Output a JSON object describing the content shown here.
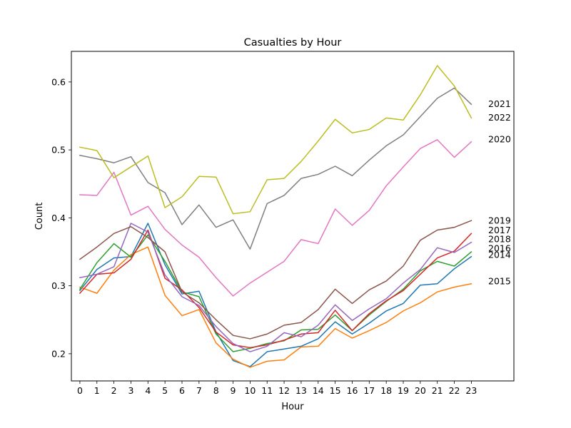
{
  "chart_data": {
    "type": "line",
    "title": "Casualties by Hour",
    "xlabel": "Hour",
    "ylabel": "Count",
    "x": [
      0,
      1,
      2,
      3,
      4,
      5,
      6,
      7,
      8,
      9,
      10,
      11,
      12,
      13,
      14,
      15,
      16,
      17,
      18,
      19,
      20,
      21,
      22,
      23
    ],
    "xticks": [
      "0",
      "1",
      "2",
      "3",
      "4",
      "5",
      "6",
      "7",
      "8",
      "9",
      "10",
      "11",
      "12",
      "13",
      "14",
      "15",
      "16",
      "17",
      "18",
      "19",
      "20",
      "21",
      "22",
      "23"
    ],
    "yticks": [
      "0.2",
      "0.3",
      "0.4",
      "0.5",
      "0.6"
    ],
    "xlim": [
      -0.5,
      25.5
    ],
    "ylim": [
      0.16,
      0.645
    ],
    "grid": false,
    "legend": "end-of-line labels",
    "series": [
      {
        "name": "2014",
        "color": "#1f77b4",
        "values": [
          0.293,
          0.324,
          0.341,
          0.343,
          0.392,
          0.331,
          0.288,
          0.292,
          0.232,
          0.19,
          0.181,
          0.203,
          0.207,
          0.211,
          0.222,
          0.247,
          0.229,
          0.245,
          0.263,
          0.274,
          0.301,
          0.303,
          0.325,
          0.343
        ]
      },
      {
        "name": "2015",
        "color": "#ff7f0e",
        "values": [
          0.298,
          0.289,
          0.323,
          0.346,
          0.357,
          0.286,
          0.256,
          0.265,
          0.216,
          0.192,
          0.18,
          0.189,
          0.191,
          0.21,
          0.211,
          0.237,
          0.223,
          0.234,
          0.246,
          0.263,
          0.275,
          0.291,
          0.298,
          0.303
        ]
      },
      {
        "name": "2016",
        "color": "#2ca02c",
        "values": [
          0.295,
          0.334,
          0.362,
          0.342,
          0.375,
          0.336,
          0.291,
          0.284,
          0.229,
          0.203,
          0.208,
          0.215,
          0.219,
          0.235,
          0.236,
          0.257,
          0.234,
          0.257,
          0.277,
          0.295,
          0.322,
          0.336,
          0.329,
          0.35
        ]
      },
      {
        "name": "2017",
        "color": "#d62728",
        "values": [
          0.289,
          0.317,
          0.319,
          0.339,
          0.382,
          0.311,
          0.294,
          0.268,
          0.232,
          0.213,
          0.209,
          0.213,
          0.22,
          0.229,
          0.231,
          0.264,
          0.234,
          0.259,
          0.278,
          0.293,
          0.317,
          0.341,
          0.351,
          0.377
        ]
      },
      {
        "name": "2018",
        "color": "#9467bd",
        "values": [
          0.312,
          0.317,
          0.328,
          0.392,
          0.379,
          0.316,
          0.284,
          0.271,
          0.24,
          0.215,
          0.203,
          0.211,
          0.231,
          0.225,
          0.242,
          0.272,
          0.249,
          0.266,
          0.281,
          0.304,
          0.324,
          0.356,
          0.349,
          0.364
        ]
      },
      {
        "name": "2019",
        "color": "#8c564b",
        "values": [
          0.339,
          0.357,
          0.377,
          0.387,
          0.371,
          0.35,
          0.291,
          0.275,
          0.25,
          0.227,
          0.222,
          0.229,
          0.242,
          0.246,
          0.265,
          0.295,
          0.274,
          0.294,
          0.307,
          0.329,
          0.367,
          0.382,
          0.386,
          0.396
        ]
      },
      {
        "name": "2020",
        "color": "#e377c2",
        "values": [
          0.434,
          0.433,
          0.467,
          0.404,
          0.417,
          0.383,
          0.36,
          0.342,
          0.312,
          0.285,
          0.304,
          0.32,
          0.336,
          0.368,
          0.362,
          0.413,
          0.389,
          0.411,
          0.447,
          0.475,
          0.502,
          0.515,
          0.489,
          0.512
        ]
      },
      {
        "name": "2021",
        "color": "#7f7f7f",
        "values": [
          0.492,
          0.487,
          0.481,
          0.49,
          0.452,
          0.437,
          0.39,
          0.419,
          0.386,
          0.397,
          0.354,
          0.421,
          0.433,
          0.458,
          0.464,
          0.476,
          0.462,
          0.485,
          0.506,
          0.522,
          0.549,
          0.576,
          0.591,
          0.567
        ]
      },
      {
        "name": "2022",
        "color": "#bcbd22",
        "values": [
          0.504,
          0.499,
          0.459,
          0.475,
          0.491,
          0.415,
          0.431,
          0.461,
          0.46,
          0.406,
          0.409,
          0.456,
          0.458,
          0.483,
          0.513,
          0.545,
          0.525,
          0.53,
          0.547,
          0.544,
          0.581,
          0.624,
          0.594,
          0.547
        ]
      }
    ],
    "end_labels": [
      {
        "name": "2021",
        "color": "#7f7f7f",
        "at": 0.568
      },
      {
        "name": "2022",
        "color": "#bcbd22",
        "at": 0.548
      },
      {
        "name": "2020",
        "color": "#e377c2",
        "at": 0.516
      },
      {
        "name": "2019",
        "color": "#8c564b",
        "at": 0.396
      },
      {
        "name": "2017",
        "color": "#d62728",
        "at": 0.382
      },
      {
        "name": "2018",
        "color": "#9467bd",
        "at": 0.369
      },
      {
        "name": "2016",
        "color": "#2ca02c",
        "at": 0.355
      },
      {
        "name": "2014",
        "color": "#1f77b4",
        "at": 0.346
      },
      {
        "name": "2015",
        "color": "#ff7f0e",
        "at": 0.307
      }
    ]
  }
}
